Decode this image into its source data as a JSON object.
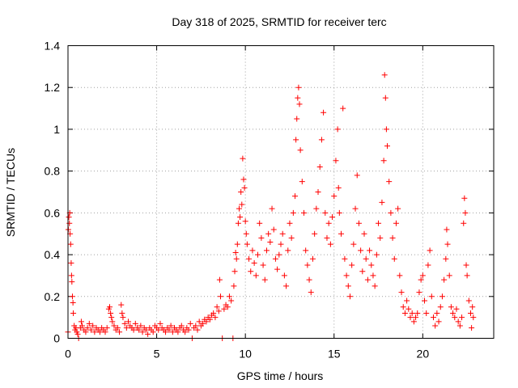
{
  "chart_data": {
    "type": "scatter",
    "title": "Day 318 of 2025, SRMTID for receiver terc",
    "xlabel": "GPS time / hours",
    "ylabel": "SRMTID / TECUs",
    "xlim": [
      0,
      24
    ],
    "ylim": [
      0,
      1.4
    ],
    "xticks": [
      0,
      5,
      10,
      15,
      20
    ],
    "xtick_labels": [
      "0",
      "5",
      "10",
      "15",
      "20"
    ],
    "yticks": [
      0,
      0.2,
      0.4,
      0.6,
      0.8,
      1,
      1.2,
      1.4
    ],
    "ytick_labels": [
      "0",
      "0.2",
      "0.4",
      "0.6",
      "0.8",
      "1",
      "1.2",
      "1.4"
    ],
    "grid": true,
    "marker": "+",
    "series": [
      {
        "name": "SRMTID",
        "color": "#ff0000",
        "points": [
          [
            0.0,
            0.03
          ],
          [
            0.02,
            0.52
          ],
          [
            0.05,
            0.58
          ],
          [
            0.08,
            0.55
          ],
          [
            0.1,
            0.6
          ],
          [
            0.12,
            0.5
          ],
          [
            0.15,
            0.45
          ],
          [
            0.18,
            0.36
          ],
          [
            0.2,
            0.3
          ],
          [
            0.22,
            0.27
          ],
          [
            0.25,
            0.2
          ],
          [
            0.28,
            0.17
          ],
          [
            0.3,
            0.12
          ],
          [
            0.35,
            0.06
          ],
          [
            0.4,
            0.04
          ],
          [
            0.45,
            0.05
          ],
          [
            0.5,
            0.03
          ],
          [
            0.55,
            0.02
          ],
          [
            0.6,
            0.0
          ],
          [
            0.7,
            0.05
          ],
          [
            0.75,
            0.08
          ],
          [
            0.8,
            0.06
          ],
          [
            0.9,
            0.04
          ],
          [
            1.0,
            0.03
          ],
          [
            1.1,
            0.05
          ],
          [
            1.2,
            0.07
          ],
          [
            1.3,
            0.04
          ],
          [
            1.4,
            0.06
          ],
          [
            1.5,
            0.03
          ],
          [
            1.6,
            0.05
          ],
          [
            1.7,
            0.04
          ],
          [
            1.8,
            0.03
          ],
          [
            1.9,
            0.05
          ],
          [
            2.0,
            0.04
          ],
          [
            2.1,
            0.03
          ],
          [
            2.2,
            0.05
          ],
          [
            2.3,
            0.14
          ],
          [
            2.35,
            0.15
          ],
          [
            2.4,
            0.12
          ],
          [
            2.45,
            0.1
          ],
          [
            2.5,
            0.08
          ],
          [
            2.6,
            0.06
          ],
          [
            2.7,
            0.04
          ],
          [
            2.8,
            0.05
          ],
          [
            2.9,
            0.03
          ],
          [
            3.0,
            0.16
          ],
          [
            3.05,
            0.12
          ],
          [
            3.1,
            0.1
          ],
          [
            3.2,
            0.07
          ],
          [
            3.3,
            0.05
          ],
          [
            3.4,
            0.08
          ],
          [
            3.5,
            0.06
          ],
          [
            3.6,
            0.05
          ],
          [
            3.7,
            0.04
          ],
          [
            3.8,
            0.07
          ],
          [
            3.9,
            0.05
          ],
          [
            4.0,
            0.04
          ],
          [
            4.1,
            0.06
          ],
          [
            4.2,
            0.03
          ],
          [
            4.3,
            0.05
          ],
          [
            4.4,
            0.04
          ],
          [
            4.5,
            0.02
          ],
          [
            4.6,
            0.05
          ],
          [
            4.7,
            0.04
          ],
          [
            4.8,
            0.03
          ],
          [
            4.9,
            0.06
          ],
          [
            5.0,
            0.05
          ],
          [
            5.1,
            0.04
          ],
          [
            5.2,
            0.07
          ],
          [
            5.3,
            0.05
          ],
          [
            5.4,
            0.04
          ],
          [
            5.5,
            0.03
          ],
          [
            5.6,
            0.05
          ],
          [
            5.7,
            0.04
          ],
          [
            5.8,
            0.06
          ],
          [
            5.9,
            0.03
          ],
          [
            6.0,
            0.05
          ],
          [
            6.1,
            0.04
          ],
          [
            6.2,
            0.03
          ],
          [
            6.3,
            0.05
          ],
          [
            6.4,
            0.06
          ],
          [
            6.5,
            0.04
          ],
          [
            6.6,
            0.03
          ],
          [
            6.7,
            0.05
          ],
          [
            6.8,
            0.04
          ],
          [
            6.9,
            0.07
          ],
          [
            7.0,
            0.0
          ],
          [
            7.1,
            0.05
          ],
          [
            7.2,
            0.06
          ],
          [
            7.3,
            0.04
          ],
          [
            7.4,
            0.08
          ],
          [
            7.5,
            0.06
          ],
          [
            7.6,
            0.07
          ],
          [
            7.7,
            0.09
          ],
          [
            7.8,
            0.08
          ],
          [
            7.9,
            0.1
          ],
          [
            8.0,
            0.09
          ],
          [
            8.1,
            0.11
          ],
          [
            8.2,
            0.12
          ],
          [
            8.3,
            0.1
          ],
          [
            8.4,
            0.15
          ],
          [
            8.5,
            0.13
          ],
          [
            8.55,
            0.28
          ],
          [
            8.6,
            0.2
          ],
          [
            8.7,
            0.0
          ],
          [
            8.8,
            0.14
          ],
          [
            8.9,
            0.16
          ],
          [
            9.0,
            0.15
          ],
          [
            9.1,
            0.2
          ],
          [
            9.2,
            0.18
          ],
          [
            9.3,
            0.0
          ],
          [
            9.35,
            0.25
          ],
          [
            9.4,
            0.32
          ],
          [
            9.45,
            0.41
          ],
          [
            9.5,
            0.38
          ],
          [
            9.55,
            0.45
          ],
          [
            9.6,
            0.55
          ],
          [
            9.65,
            0.62
          ],
          [
            9.7,
            0.58
          ],
          [
            9.75,
            0.7
          ],
          [
            9.8,
            0.64
          ],
          [
            9.85,
            0.86
          ],
          [
            9.9,
            0.76
          ],
          [
            9.95,
            0.72
          ],
          [
            10.0,
            0.56
          ],
          [
            10.05,
            0.5
          ],
          [
            10.1,
            0.45
          ],
          [
            10.2,
            0.38
          ],
          [
            10.3,
            0.32
          ],
          [
            10.4,
            0.42
          ],
          [
            10.5,
            0.36
          ],
          [
            10.6,
            0.3
          ],
          [
            10.7,
            0.4
          ],
          [
            10.8,
            0.55
          ],
          [
            10.9,
            0.48
          ],
          [
            11.0,
            0.35
          ],
          [
            11.1,
            0.28
          ],
          [
            11.2,
            0.42
          ],
          [
            11.3,
            0.5
          ],
          [
            11.4,
            0.46
          ],
          [
            11.5,
            0.62
          ],
          [
            11.6,
            0.52
          ],
          [
            11.7,
            0.38
          ],
          [
            11.8,
            0.33
          ],
          [
            11.9,
            0.4
          ],
          [
            12.0,
            0.45
          ],
          [
            12.1,
            0.5
          ],
          [
            12.2,
            0.3
          ],
          [
            12.3,
            0.25
          ],
          [
            12.4,
            0.42
          ],
          [
            12.5,
            0.55
          ],
          [
            12.6,
            0.48
          ],
          [
            12.7,
            0.6
          ],
          [
            12.8,
            0.68
          ],
          [
            12.85,
            0.95
          ],
          [
            12.9,
            1.05
          ],
          [
            12.95,
            1.15
          ],
          [
            13.0,
            1.2
          ],
          [
            13.05,
            1.12
          ],
          [
            13.1,
            0.9
          ],
          [
            13.2,
            0.75
          ],
          [
            13.3,
            0.6
          ],
          [
            13.4,
            0.42
          ],
          [
            13.5,
            0.35
          ],
          [
            13.6,
            0.28
          ],
          [
            13.7,
            0.22
          ],
          [
            13.8,
            0.38
          ],
          [
            13.9,
            0.5
          ],
          [
            14.0,
            0.62
          ],
          [
            14.1,
            0.7
          ],
          [
            14.2,
            0.82
          ],
          [
            14.3,
            0.95
          ],
          [
            14.4,
            1.08
          ],
          [
            14.5,
            0.6
          ],
          [
            14.6,
            0.48
          ],
          [
            14.7,
            0.55
          ],
          [
            14.8,
            0.45
          ],
          [
            14.9,
            0.58
          ],
          [
            15.0,
            0.68
          ],
          [
            15.1,
            0.85
          ],
          [
            15.2,
            1.0
          ],
          [
            15.25,
            0.72
          ],
          [
            15.3,
            0.6
          ],
          [
            15.4,
            0.5
          ],
          [
            15.5,
            1.1
          ],
          [
            15.6,
            0.38
          ],
          [
            15.7,
            0.3
          ],
          [
            15.8,
            0.25
          ],
          [
            15.9,
            0.2
          ],
          [
            16.0,
            0.35
          ],
          [
            16.1,
            0.45
          ],
          [
            16.2,
            0.62
          ],
          [
            16.3,
            0.78
          ],
          [
            16.4,
            0.55
          ],
          [
            16.5,
            0.42
          ],
          [
            16.6,
            0.32
          ],
          [
            16.7,
            0.5
          ],
          [
            16.8,
            0.38
          ],
          [
            16.9,
            0.28
          ],
          [
            17.0,
            0.42
          ],
          [
            17.1,
            0.35
          ],
          [
            17.2,
            0.3
          ],
          [
            17.3,
            0.25
          ],
          [
            17.4,
            0.4
          ],
          [
            17.5,
            0.55
          ],
          [
            17.6,
            0.48
          ],
          [
            17.7,
            0.65
          ],
          [
            17.8,
            0.85
          ],
          [
            17.85,
            1.26
          ],
          [
            17.9,
            1.15
          ],
          [
            17.95,
            1.0
          ],
          [
            18.0,
            0.92
          ],
          [
            18.1,
            0.75
          ],
          [
            18.2,
            0.6
          ],
          [
            18.3,
            0.48
          ],
          [
            18.4,
            0.38
          ],
          [
            18.5,
            0.55
          ],
          [
            18.6,
            0.62
          ],
          [
            18.7,
            0.3
          ],
          [
            18.8,
            0.22
          ],
          [
            18.9,
            0.15
          ],
          [
            19.0,
            0.12
          ],
          [
            19.1,
            0.18
          ],
          [
            19.2,
            0.14
          ],
          [
            19.3,
            0.1
          ],
          [
            19.4,
            0.12
          ],
          [
            19.5,
            0.08
          ],
          [
            19.6,
            0.1
          ],
          [
            19.7,
            0.12
          ],
          [
            19.8,
            0.22
          ],
          [
            19.9,
            0.28
          ],
          [
            20.0,
            0.3
          ],
          [
            20.1,
            0.18
          ],
          [
            20.2,
            0.12
          ],
          [
            20.3,
            0.35
          ],
          [
            20.4,
            0.42
          ],
          [
            20.5,
            0.2
          ],
          [
            20.6,
            0.1
          ],
          [
            20.7,
            0.06
          ],
          [
            20.8,
            0.12
          ],
          [
            20.9,
            0.08
          ],
          [
            21.0,
            0.15
          ],
          [
            21.1,
            0.2
          ],
          [
            21.2,
            0.28
          ],
          [
            21.3,
            0.38
          ],
          [
            21.35,
            0.52
          ],
          [
            21.4,
            0.45
          ],
          [
            21.5,
            0.3
          ],
          [
            21.6,
            0.15
          ],
          [
            21.7,
            0.12
          ],
          [
            21.8,
            0.1
          ],
          [
            21.9,
            0.14
          ],
          [
            22.0,
            0.08
          ],
          [
            22.1,
            0.06
          ],
          [
            22.2,
            0.1
          ],
          [
            22.3,
            0.55
          ],
          [
            22.35,
            0.67
          ],
          [
            22.4,
            0.6
          ],
          [
            22.45,
            0.35
          ],
          [
            22.5,
            0.3
          ],
          [
            22.6,
            0.18
          ],
          [
            22.7,
            0.12
          ],
          [
            22.75,
            0.05
          ],
          [
            22.8,
            0.15
          ],
          [
            22.85,
            0.1
          ]
        ]
      }
    ]
  }
}
